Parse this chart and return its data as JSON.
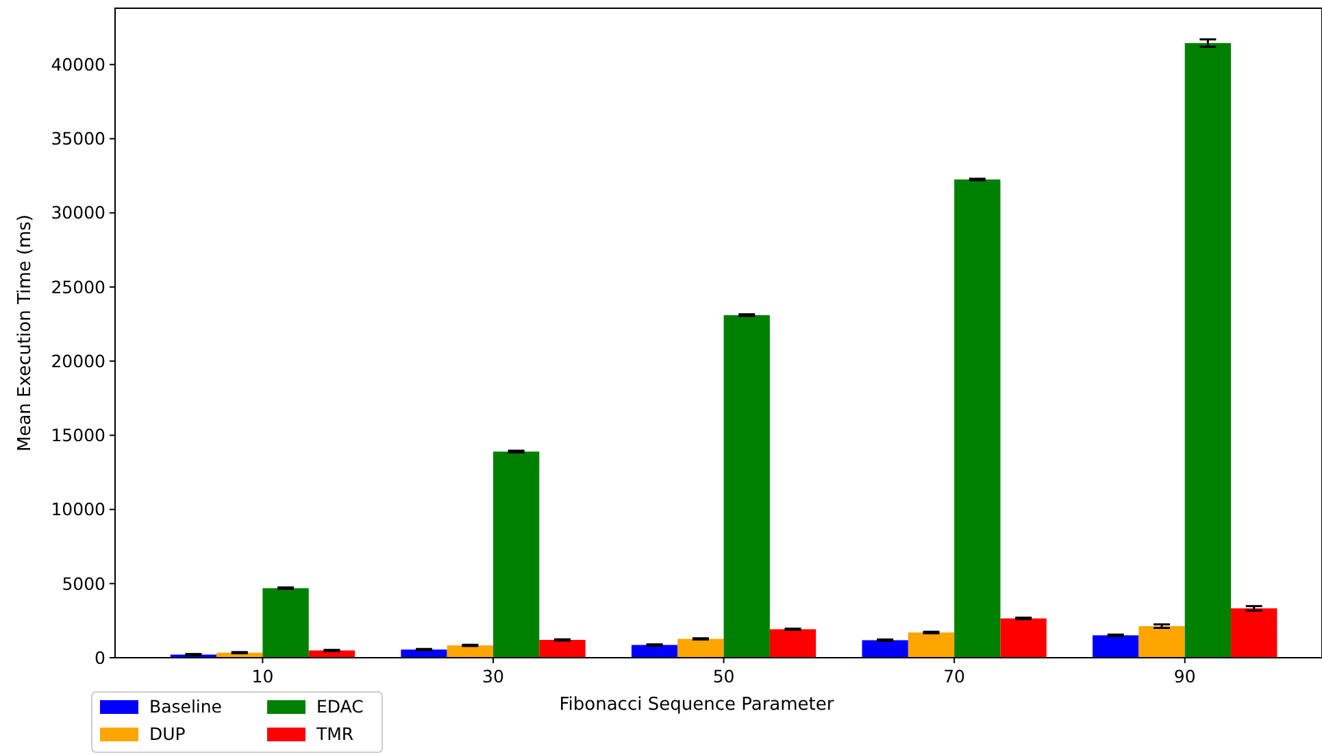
{
  "chart_data": {
    "type": "bar",
    "xlabel": "Fibonacci Sequence Parameter",
    "ylabel": "Mean Execution Time (ms)",
    "x": [
      10,
      30,
      50,
      70,
      90
    ],
    "xlim": [
      -2.8,
      101.9
    ],
    "xticks": [
      10,
      30,
      50,
      70,
      90
    ],
    "ylim": [
      0,
      43800
    ],
    "yticks": [
      0,
      5000,
      10000,
      15000,
      20000,
      25000,
      30000,
      35000,
      40000
    ],
    "series": [
      {
        "name": "Baseline",
        "color": "#0000ff",
        "values": [
          210,
          550,
          860,
          1180,
          1510
        ],
        "errors": [
          40,
          40,
          40,
          50,
          50
        ]
      },
      {
        "name": "DUP",
        "color": "#ffa500",
        "values": [
          340,
          830,
          1270,
          1700,
          2130
        ],
        "errors": [
          40,
          40,
          40,
          50,
          120
        ]
      },
      {
        "name": "EDAC",
        "color": "#008000",
        "values": [
          4690,
          13900,
          23100,
          32250,
          41450
        ],
        "errors": [
          50,
          60,
          60,
          50,
          250
        ]
      },
      {
        "name": "TMR",
        "color": "#ff0000",
        "values": [
          490,
          1200,
          1920,
          2650,
          3330
        ],
        "errors": [
          40,
          40,
          40,
          50,
          150
        ]
      }
    ],
    "legend": "bottom left"
  }
}
